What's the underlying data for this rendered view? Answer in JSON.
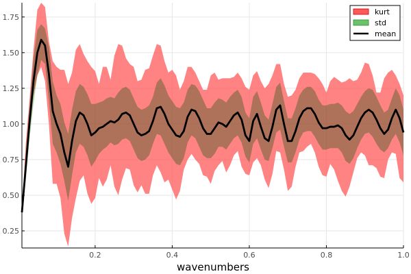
{
  "chart_data": {
    "type": "area",
    "title": "",
    "xlabel": "wavenumbers",
    "ylabel": "",
    "xlim": [
      0.01,
      1.0
    ],
    "ylim": [
      0.13,
      1.85
    ],
    "grid": true,
    "legend_position": "top-right",
    "xticks": [
      0.2,
      0.4,
      0.6,
      0.8,
      1.0
    ],
    "xtick_labels": [
      "0.2",
      "0.4",
      "0.6",
      "0.8",
      "1.0"
    ],
    "yticks": [
      0.25,
      0.5,
      0.75,
      1.0,
      1.25,
      1.5,
      1.75
    ],
    "ytick_labels": [
      "0.25",
      "0.50",
      "0.75",
      "1.00",
      "1.25",
      "1.50",
      "1.75"
    ],
    "x": [
      0.01,
      0.02,
      0.03,
      0.04,
      0.05,
      0.06,
      0.07,
      0.08,
      0.09,
      0.1,
      0.11,
      0.12,
      0.13,
      0.14,
      0.15,
      0.16,
      0.17,
      0.18,
      0.19,
      0.2,
      0.21,
      0.22,
      0.23,
      0.24,
      0.25,
      0.26,
      0.27,
      0.28,
      0.29,
      0.3,
      0.31,
      0.32,
      0.33,
      0.34,
      0.35,
      0.36,
      0.37,
      0.38,
      0.39,
      0.4,
      0.41,
      0.42,
      0.43,
      0.44,
      0.45,
      0.46,
      0.47,
      0.48,
      0.49,
      0.5,
      0.51,
      0.52,
      0.53,
      0.54,
      0.55,
      0.56,
      0.57,
      0.58,
      0.59,
      0.6,
      0.61,
      0.62,
      0.63,
      0.64,
      0.65,
      0.66,
      0.67,
      0.68,
      0.69,
      0.7,
      0.71,
      0.72,
      0.73,
      0.74,
      0.75,
      0.76,
      0.77,
      0.78,
      0.79,
      0.8,
      0.81,
      0.82,
      0.83,
      0.84,
      0.85,
      0.86,
      0.87,
      0.88,
      0.89,
      0.9,
      0.91,
      0.92,
      0.93,
      0.94,
      0.95,
      0.96,
      0.97,
      0.98,
      0.99,
      1.0
    ],
    "series": [
      {
        "name": "mean",
        "color": "#000000",
        "values": [
          0.38,
          0.7,
          1.02,
          1.3,
          1.5,
          1.59,
          1.55,
          1.35,
          1.09,
          1.0,
          0.93,
          0.8,
          0.7,
          0.88,
          1.02,
          1.08,
          1.06,
          1.0,
          0.92,
          0.94,
          0.97,
          0.98,
          1.0,
          1.02,
          1.01,
          1.03,
          1.07,
          1.08,
          1.06,
          1.0,
          0.94,
          0.92,
          0.93,
          0.95,
          1.02,
          1.11,
          1.12,
          1.07,
          1.0,
          0.96,
          0.92,
          0.91,
          0.95,
          1.05,
          1.1,
          1.09,
          1.04,
          0.97,
          0.93,
          0.93,
          0.97,
          1.01,
          1.0,
          0.98,
          1.02,
          1.06,
          1.08,
          1.03,
          0.92,
          0.88,
          1.02,
          1.07,
          0.98,
          0.9,
          0.88,
          0.98,
          1.1,
          1.13,
          1.0,
          0.88,
          0.88,
          0.95,
          1.04,
          1.09,
          1.11,
          1.11,
          1.07,
          1.01,
          0.97,
          0.97,
          0.98,
          0.98,
          0.99,
          0.97,
          0.92,
          0.89,
          0.92,
          0.98,
          1.04,
          1.08,
          1.1,
          1.08,
          1.03,
          0.97,
          0.93,
          0.96,
          1.04,
          1.1,
          1.04,
          0.94
        ]
      },
      {
        "name": "std",
        "color": "#6ac36a",
        "lower": [
          0.38,
          0.6,
          0.9,
          1.14,
          1.34,
          1.45,
          1.42,
          1.16,
          0.86,
          0.8,
          0.72,
          0.6,
          0.46,
          0.64,
          0.8,
          0.86,
          0.84,
          0.78,
          0.7,
          0.74,
          0.79,
          0.82,
          0.84,
          0.87,
          0.85,
          0.86,
          0.89,
          0.9,
          0.88,
          0.82,
          0.76,
          0.74,
          0.75,
          0.78,
          0.86,
          0.93,
          0.92,
          0.86,
          0.8,
          0.76,
          0.72,
          0.71,
          0.76,
          0.87,
          0.92,
          0.9,
          0.84,
          0.78,
          0.76,
          0.76,
          0.79,
          0.84,
          0.84,
          0.82,
          0.86,
          0.9,
          0.92,
          0.87,
          0.77,
          0.73,
          0.86,
          0.9,
          0.82,
          0.75,
          0.74,
          0.83,
          0.94,
          0.96,
          0.84,
          0.73,
          0.73,
          0.8,
          0.89,
          0.94,
          0.95,
          0.95,
          0.91,
          0.86,
          0.82,
          0.82,
          0.83,
          0.83,
          0.83,
          0.8,
          0.74,
          0.72,
          0.76,
          0.83,
          0.89,
          0.93,
          0.94,
          0.91,
          0.86,
          0.82,
          0.8,
          0.83,
          0.89,
          0.93,
          0.87,
          0.78
        ],
        "upper": [
          0.38,
          0.8,
          1.14,
          1.46,
          1.66,
          1.7,
          1.67,
          1.54,
          1.3,
          1.2,
          1.14,
          1.01,
          0.93,
          1.1,
          1.23,
          1.28,
          1.26,
          1.21,
          1.14,
          1.14,
          1.15,
          1.16,
          1.18,
          1.19,
          1.18,
          1.22,
          1.25,
          1.26,
          1.24,
          1.18,
          1.12,
          1.1,
          1.11,
          1.13,
          1.19,
          1.29,
          1.32,
          1.27,
          1.2,
          1.16,
          1.12,
          1.11,
          1.15,
          1.24,
          1.28,
          1.27,
          1.23,
          1.17,
          1.11,
          1.11,
          1.15,
          1.18,
          1.17,
          1.15,
          1.19,
          1.22,
          1.24,
          1.19,
          1.08,
          1.04,
          1.19,
          1.23,
          1.15,
          1.06,
          1.03,
          1.14,
          1.26,
          1.29,
          1.16,
          1.04,
          1.04,
          1.11,
          1.2,
          1.24,
          1.26,
          1.26,
          1.23,
          1.17,
          1.13,
          1.13,
          1.14,
          1.14,
          1.15,
          1.13,
          1.09,
          1.07,
          1.09,
          1.14,
          1.19,
          1.23,
          1.25,
          1.24,
          1.19,
          1.13,
          1.08,
          1.1,
          1.18,
          1.25,
          1.2,
          1.1
        ]
      },
      {
        "name": "kurt",
        "color": "#ff5a5a",
        "lower": [
          0.38,
          0.62,
          0.94,
          1.2,
          1.34,
          1.4,
          1.3,
          1.0,
          0.58,
          0.58,
          0.48,
          0.23,
          0.14,
          0.34,
          0.48,
          0.6,
          0.64,
          0.51,
          0.44,
          0.48,
          0.62,
          0.56,
          0.61,
          0.71,
          0.56,
          0.5,
          0.61,
          0.69,
          0.68,
          0.57,
          0.52,
          0.57,
          0.51,
          0.51,
          0.64,
          0.71,
          0.66,
          0.59,
          0.61,
          0.54,
          0.47,
          0.53,
          0.68,
          0.75,
          0.79,
          0.75,
          0.72,
          0.64,
          0.63,
          0.58,
          0.67,
          0.71,
          0.74,
          0.66,
          0.71,
          0.78,
          0.81,
          0.7,
          0.65,
          0.64,
          0.73,
          0.76,
          0.71,
          0.61,
          0.55,
          0.65,
          0.81,
          0.8,
          0.68,
          0.53,
          0.56,
          0.7,
          0.8,
          0.81,
          0.84,
          0.86,
          0.8,
          0.7,
          0.64,
          0.63,
          0.72,
          0.68,
          0.6,
          0.53,
          0.49,
          0.56,
          0.66,
          0.76,
          0.8,
          0.78,
          0.71,
          0.71,
          0.69,
          0.63,
          0.62,
          0.75,
          0.8,
          0.79,
          0.62,
          0.59
        ],
        "upper": [
          0.38,
          0.86,
          1.18,
          1.52,
          1.8,
          1.85,
          1.82,
          1.58,
          1.44,
          1.4,
          1.38,
          1.38,
          1.28,
          1.36,
          1.52,
          1.56,
          1.49,
          1.44,
          1.4,
          1.37,
          1.28,
          1.4,
          1.4,
          1.31,
          1.48,
          1.56,
          1.55,
          1.46,
          1.42,
          1.4,
          1.3,
          1.31,
          1.38,
          1.39,
          1.48,
          1.56,
          1.55,
          1.44,
          1.36,
          1.38,
          1.34,
          1.24,
          1.3,
          1.4,
          1.4,
          1.36,
          1.3,
          1.24,
          1.24,
          1.34,
          1.36,
          1.31,
          1.32,
          1.32,
          1.32,
          1.33,
          1.36,
          1.32,
          1.26,
          1.24,
          1.34,
          1.37,
          1.3,
          1.25,
          1.28,
          1.34,
          1.42,
          1.42,
          1.28,
          1.19,
          1.2,
          1.24,
          1.32,
          1.36,
          1.36,
          1.36,
          1.35,
          1.32,
          1.28,
          1.22,
          1.3,
          1.33,
          1.31,
          1.29,
          1.3,
          1.32,
          1.3,
          1.31,
          1.36,
          1.43,
          1.42,
          1.34,
          1.22,
          1.22,
          1.32,
          1.36,
          1.38,
          1.34,
          1.28,
          1.2
        ]
      }
    ],
    "legend": [
      {
        "label": "kurt",
        "color": "#ff5a5a"
      },
      {
        "label": "std",
        "color": "#6ac36a"
      },
      {
        "label": "mean",
        "color": "#000000"
      }
    ]
  }
}
